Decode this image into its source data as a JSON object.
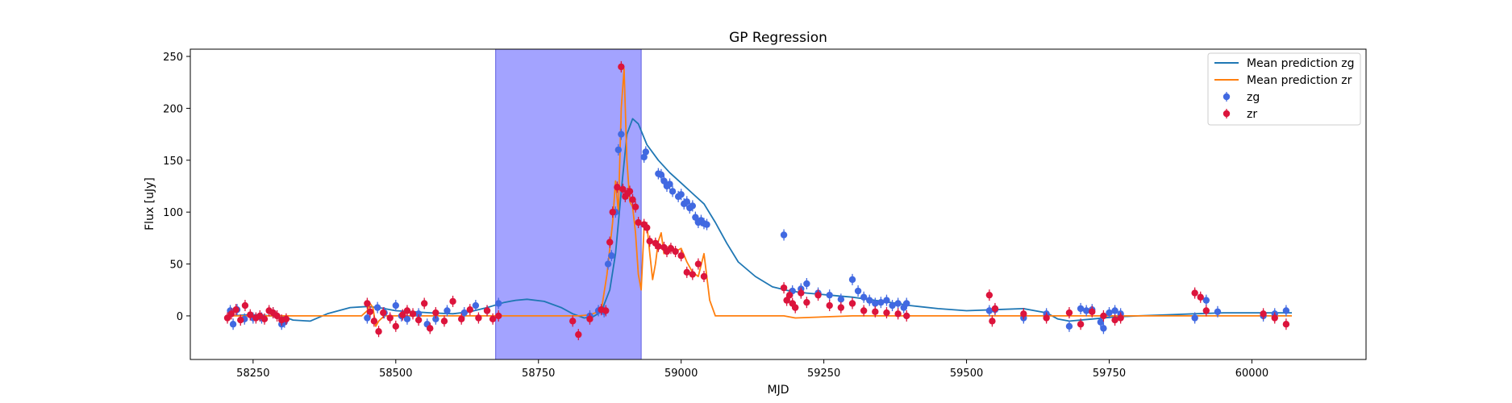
{
  "chart_data": {
    "type": "scatter",
    "title": "GP Regression",
    "xlabel": "MJD",
    "ylabel": "Flux [uJy]",
    "xlim": [
      58140,
      60200
    ],
    "ylim": [
      -42,
      257
    ],
    "xticks": [
      58250,
      58500,
      58750,
      59000,
      59250,
      59500,
      59750,
      60000
    ],
    "yticks": [
      0,
      50,
      100,
      150,
      200,
      250
    ],
    "grid": false,
    "legend_position": "top-right",
    "shaded_region": {
      "x_start": 58675,
      "x_end": 58930,
      "color": "#a3a3ff"
    },
    "lines": [
      {
        "name": "Mean prediction zg",
        "color": "#1f77b4",
        "x": [
          58210,
          58240,
          58260,
          58280,
          58300,
          58320,
          58350,
          58380,
          58420,
          58450,
          58470,
          58500,
          58530,
          58560,
          58600,
          58630,
          58660,
          58690,
          58710,
          58730,
          58760,
          58790,
          58810,
          58830,
          58845,
          58860,
          58875,
          58885,
          58895,
          58905,
          58915,
          58925,
          58940,
          58960,
          58980,
          59000,
          59020,
          59040,
          59060,
          59080,
          59100,
          59130,
          59160,
          59190,
          59220,
          59260,
          59300,
          59340,
          59380,
          59400,
          59450,
          59500,
          59550,
          59600,
          59640,
          59660,
          59680,
          59720,
          59760,
          59800,
          59850,
          59900,
          59950,
          60000,
          60050,
          60070
        ],
        "y": [
          0,
          1,
          1,
          0,
          0,
          -4,
          -5,
          2,
          8,
          9,
          8,
          5,
          4,
          3,
          2,
          4,
          8,
          13,
          15,
          16,
          14,
          8,
          2,
          -2,
          -1,
          4,
          25,
          60,
          120,
          175,
          190,
          185,
          165,
          150,
          138,
          128,
          118,
          108,
          90,
          70,
          52,
          38,
          28,
          24,
          22,
          20,
          18,
          15,
          12,
          10,
          7,
          5,
          6,
          7,
          3,
          -3,
          -5,
          -3,
          -1,
          0,
          1,
          2,
          3,
          3,
          3,
          3
        ]
      },
      {
        "name": "Mean prediction zr",
        "color": "#ff7f0e",
        "x": [
          58210,
          58300,
          58420,
          58440,
          58450,
          58455,
          58460,
          58465,
          58470,
          58480,
          58500,
          58600,
          58660,
          58700,
          58800,
          58820,
          58840,
          58860,
          58870,
          58880,
          58885,
          58890,
          58895,
          58900,
          58905,
          58910,
          58915,
          58920,
          58925,
          58930,
          58935,
          58940,
          58945,
          58950,
          58955,
          58960,
          58965,
          58970,
          58980,
          58990,
          59000,
          59010,
          59020,
          59030,
          59040,
          59050,
          59060,
          59180,
          59200,
          59300,
          59400,
          59500,
          59600,
          59700,
          59800,
          59900,
          60000,
          60070
        ],
        "y": [
          0,
          0,
          0,
          0,
          5,
          12,
          8,
          -10,
          -5,
          0,
          0,
          0,
          0,
          0,
          0,
          0,
          1,
          5,
          40,
          90,
          130,
          100,
          200,
          238,
          150,
          110,
          105,
          80,
          40,
          25,
          85,
          88,
          60,
          35,
          50,
          72,
          80,
          60,
          68,
          62,
          65,
          52,
          42,
          38,
          60,
          15,
          0,
          0,
          -2,
          0,
          0,
          0,
          0,
          0,
          0,
          0,
          0,
          0
        ]
      }
    ],
    "series": [
      {
        "name": "zg",
        "color": "#4169e1",
        "x": [
          58210,
          58215,
          58222,
          58235,
          58250,
          58265,
          58285,
          58300,
          58305,
          58450,
          58468,
          58480,
          58500,
          58510,
          58520,
          58540,
          58555,
          58570,
          58590,
          58620,
          58640,
          58660,
          58680,
          58840,
          58855,
          58865,
          58872,
          58878,
          58885,
          58890,
          58895,
          58935,
          58938,
          58960,
          58965,
          58970,
          58975,
          58980,
          58985,
          58995,
          59000,
          59005,
          59010,
          59015,
          59020,
          59025,
          59030,
          59035,
          59040,
          59045,
          59180,
          59195,
          59210,
          59220,
          59240,
          59260,
          59280,
          59300,
          59310,
          59320,
          59330,
          59340,
          59350,
          59360,
          59370,
          59380,
          59390,
          59395,
          59540,
          59550,
          59600,
          59640,
          59680,
          59700,
          59710,
          59720,
          59735,
          59740,
          59750,
          59760,
          59770,
          59900,
          59920,
          59940,
          60020,
          60040,
          60060
        ],
        "y": [
          5,
          -8,
          6,
          -3,
          -2,
          -2,
          3,
          -8,
          -6,
          -2,
          8,
          3,
          10,
          0,
          -3,
          2,
          -8,
          -3,
          5,
          3,
          10,
          5,
          12,
          0,
          5,
          4,
          50,
          58,
          100,
          160,
          175,
          153,
          158,
          137,
          136,
          130,
          125,
          127,
          120,
          115,
          117,
          108,
          110,
          104,
          106,
          95,
          90,
          92,
          89,
          88,
          78,
          24,
          26,
          31,
          22,
          20,
          16,
          35,
          24,
          18,
          15,
          12,
          13,
          15,
          10,
          12,
          8,
          12,
          5,
          6,
          -2,
          2,
          -10,
          7,
          5,
          6,
          -6,
          -12,
          3,
          5,
          2,
          -2,
          15,
          4,
          0,
          2,
          5
        ]
      },
      {
        "name": "zr",
        "color": "#dc143c",
        "x": [
          58205,
          58212,
          58220,
          58228,
          58236,
          58245,
          58255,
          58262,
          58270,
          58278,
          58285,
          58292,
          58300,
          58308,
          58450,
          58455,
          58462,
          58470,
          58478,
          58490,
          58500,
          58512,
          58520,
          58530,
          58540,
          58550,
          58560,
          58570,
          58585,
          58600,
          58615,
          58630,
          58645,
          58660,
          58670,
          58680,
          58810,
          58820,
          58840,
          58860,
          58868,
          58875,
          58880,
          58888,
          58895,
          58898,
          58902,
          58906,
          58910,
          58915,
          58920,
          58925,
          58935,
          58940,
          58945,
          58955,
          58960,
          58970,
          58975,
          58982,
          58990,
          59000,
          59010,
          59020,
          59030,
          59040,
          59180,
          59185,
          59190,
          59195,
          59200,
          59210,
          59220,
          59240,
          59260,
          59280,
          59300,
          59320,
          59340,
          59360,
          59380,
          59395,
          59540,
          59545,
          59550,
          59600,
          59640,
          59680,
          59700,
          59720,
          59740,
          59760,
          59770,
          59900,
          59910,
          59920,
          60020,
          60040,
          60060
        ],
        "y": [
          -2,
          2,
          6,
          -4,
          10,
          1,
          -2,
          0,
          -3,
          5,
          3,
          0,
          -4,
          -3,
          12,
          4,
          -5,
          -15,
          3,
          -2,
          -10,
          1,
          5,
          2,
          -4,
          12,
          -12,
          3,
          -5,
          14,
          -3,
          6,
          -2,
          5,
          -3,
          0,
          -5,
          -18,
          -3,
          6,
          5,
          71,
          100,
          124,
          240,
          122,
          115,
          118,
          120,
          112,
          105,
          90,
          88,
          85,
          72,
          70,
          67,
          66,
          62,
          65,
          62,
          58,
          42,
          40,
          50,
          38,
          27,
          15,
          20,
          12,
          8,
          22,
          13,
          20,
          10,
          8,
          12,
          5,
          4,
          3,
          2,
          0,
          20,
          -5,
          7,
          2,
          -2,
          3,
          -8,
          4,
          0,
          -4,
          -2,
          22,
          18,
          5,
          2,
          -2,
          -8
        ]
      }
    ]
  }
}
